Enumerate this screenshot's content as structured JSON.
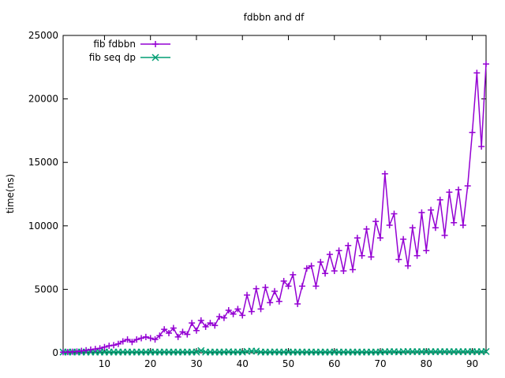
{
  "chart_data": {
    "type": "line",
    "title": "fdbbn and df",
    "xlabel": "",
    "ylabel": "time(ns)",
    "xlim": [
      1,
      93
    ],
    "ylim": [
      0,
      25000
    ],
    "xticks": [
      10,
      20,
      30,
      40,
      50,
      60,
      70,
      80,
      90
    ],
    "yticks": [
      0,
      5000,
      10000,
      15000,
      20000,
      25000
    ],
    "grid": false,
    "legend_position": "top-left",
    "x": [
      1,
      2,
      3,
      4,
      5,
      6,
      7,
      8,
      9,
      10,
      11,
      12,
      13,
      14,
      15,
      16,
      17,
      18,
      19,
      20,
      21,
      22,
      23,
      24,
      25,
      26,
      27,
      28,
      29,
      30,
      31,
      32,
      33,
      34,
      35,
      36,
      37,
      38,
      39,
      40,
      41,
      42,
      43,
      44,
      45,
      46,
      47,
      48,
      49,
      50,
      51,
      52,
      53,
      54,
      55,
      56,
      57,
      58,
      59,
      60,
      61,
      62,
      63,
      64,
      65,
      66,
      67,
      68,
      69,
      70,
      71,
      72,
      73,
      74,
      75,
      76,
      77,
      78,
      79,
      80,
      81,
      82,
      83,
      84,
      85,
      86,
      87,
      88,
      89,
      90,
      91,
      92,
      93
    ],
    "series": [
      {
        "name": "fib fdbbn",
        "color": "#9400d3",
        "marker": "plus",
        "values": [
          50,
          60,
          80,
          100,
          150,
          200,
          250,
          300,
          350,
          450,
          550,
          600,
          700,
          900,
          1050,
          850,
          1050,
          1150,
          1250,
          1150,
          1050,
          1350,
          1850,
          1550,
          1950,
          1250,
          1650,
          1450,
          2350,
          1750,
          2550,
          2050,
          2350,
          2150,
          2850,
          2750,
          3350,
          3050,
          3450,
          2950,
          4550,
          3250,
          5050,
          3450,
          5150,
          3950,
          4850,
          4050,
          5650,
          5250,
          6150,
          3850,
          5250,
          6650,
          6850,
          5250,
          7150,
          6250,
          7750,
          6450,
          8050,
          6450,
          8450,
          6550,
          9050,
          7650,
          9750,
          7550,
          10350,
          9050,
          14100,
          10050,
          10950,
          7350,
          8950,
          6850,
          9850,
          7650,
          11050,
          8050,
          11250,
          9850,
          12050,
          9250,
          12650,
          10250,
          12850,
          10050,
          13150,
          17350,
          22050,
          16250,
          22750
        ]
      },
      {
        "name": "fib seq dp",
        "color": "#009e73",
        "marker": "cross",
        "values": [
          60,
          60,
          60,
          60,
          60,
          60,
          60,
          60,
          60,
          60,
          60,
          60,
          60,
          60,
          60,
          60,
          60,
          60,
          60,
          60,
          60,
          60,
          60,
          60,
          60,
          60,
          60,
          60,
          60,
          60,
          170,
          60,
          60,
          60,
          60,
          60,
          80,
          60,
          70,
          60,
          110,
          130,
          130,
          60,
          60,
          60,
          70,
          60,
          60,
          60,
          60,
          60,
          60,
          60,
          60,
          60,
          60,
          60,
          60,
          60,
          60,
          60,
          60,
          60,
          60,
          60,
          60,
          60,
          60,
          60,
          80,
          90,
          90,
          70,
          90,
          100,
          90,
          90,
          90,
          90,
          90,
          90,
          90,
          90,
          90,
          90,
          90,
          90,
          90,
          90,
          90,
          90,
          100
        ]
      }
    ]
  }
}
